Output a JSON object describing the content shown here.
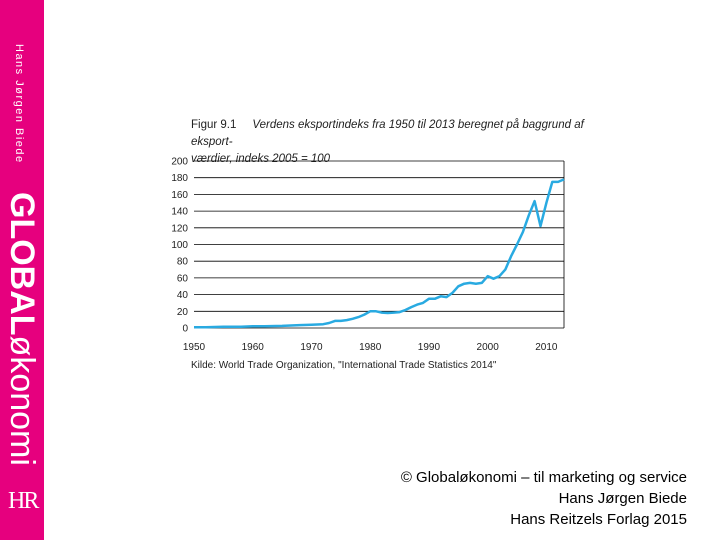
{
  "sidebar": {
    "author": "Hans Jørgen Biede",
    "title_bold": "GLOBAL",
    "title_light": "økonomi",
    "logo": "HR"
  },
  "figure": {
    "label": "Figur 9.1",
    "caption_line1": "Verdens eksportindeks fra 1950 til 2013 beregnet på baggrund af eksport-",
    "caption_line2": "værdier, indeks 2005 = 100",
    "source": "Kilde: World Trade Organization, \"International Trade Statistics 2014\""
  },
  "footer": {
    "line1": "© Globaløkonomi – til marketing og service",
    "line2": "Hans Jørgen Biede",
    "line3": "Hans Reitzels Forlag 2015"
  },
  "colors": {
    "sidebar": "#e6007e",
    "line": "#29aae1",
    "grid": "#000000"
  },
  "chart_data": {
    "type": "line",
    "title": "Verdens eksportindeks fra 1950 til 2013 beregnet på baggrund af eksportværdier, indeks 2005 = 100",
    "xlabel": "",
    "ylabel": "",
    "xlim": [
      1950,
      2013
    ],
    "ylim": [
      0,
      200
    ],
    "grid": true,
    "x_ticks": [
      1950,
      1960,
      1970,
      1980,
      1990,
      2000,
      2010
    ],
    "y_ticks": [
      0,
      20,
      40,
      60,
      80,
      100,
      120,
      140,
      160,
      180,
      200
    ],
    "x": [
      1950,
      1952,
      1955,
      1958,
      1960,
      1962,
      1965,
      1968,
      1970,
      1972,
      1973,
      1974,
      1975,
      1976,
      1977,
      1978,
      1979,
      1980,
      1981,
      1982,
      1983,
      1984,
      1985,
      1986,
      1987,
      1988,
      1989,
      1990,
      1991,
      1992,
      1993,
      1994,
      1995,
      1996,
      1997,
      1998,
      1999,
      2000,
      2001,
      2002,
      2003,
      2004,
      2005,
      2006,
      2007,
      2008,
      2009,
      2010,
      2011,
      2012,
      2013
    ],
    "values": [
      1,
      1,
      1.5,
      1.5,
      2,
      2,
      2.5,
      3.5,
      4,
      4.5,
      6,
      8.5,
      8.5,
      9.5,
      11,
      13,
      16,
      20,
      20,
      18.5,
      18,
      18.5,
      19,
      21.5,
      25,
      28,
      30,
      35,
      35,
      38,
      37,
      42,
      50,
      53,
      54,
      53,
      54,
      62,
      59,
      62,
      70,
      86,
      100,
      115,
      135,
      152,
      122,
      150,
      175,
      175,
      178
    ],
    "series": [
      {
        "name": "",
        "values_ref": "values"
      }
    ]
  }
}
